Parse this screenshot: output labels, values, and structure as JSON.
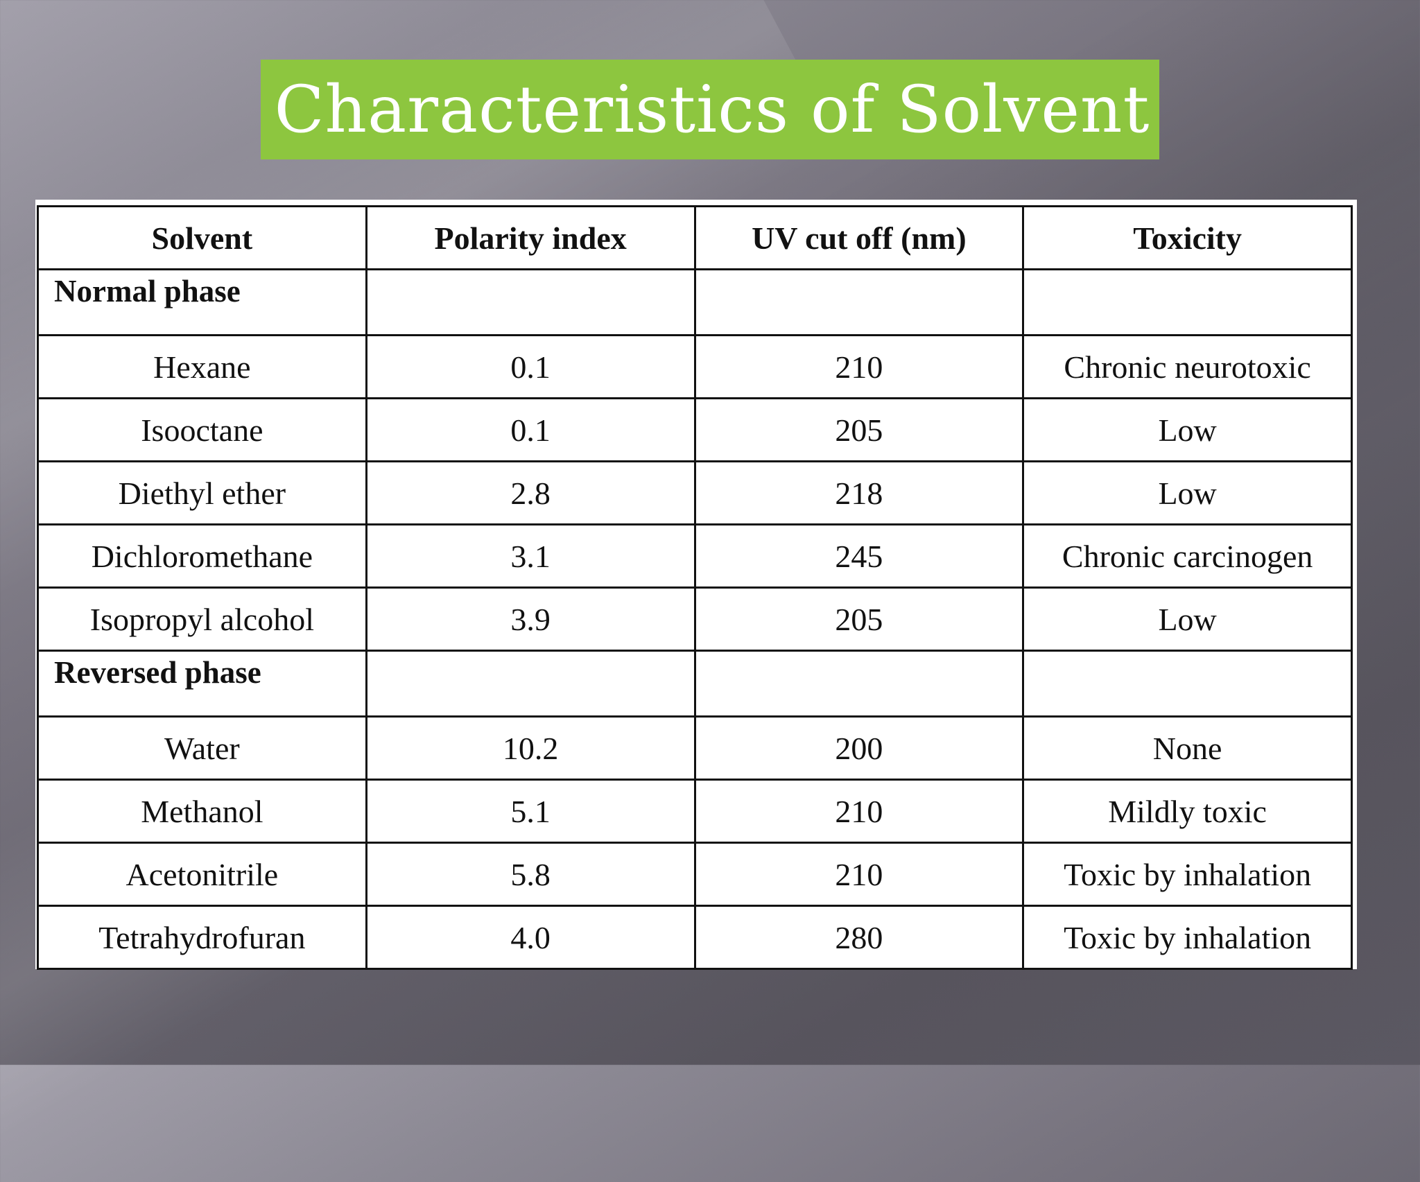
{
  "slide": {
    "title": "Characteristics of Solvent",
    "title_bg_color": "#8dc63f"
  },
  "table": {
    "headers": [
      "Solvent",
      "Polarity index",
      "UV cut off (nm)",
      "Toxicity"
    ],
    "normal_phase_label": "Normal phase",
    "normal_phase_rows": [
      {
        "solvent": "Hexane",
        "polarity_index": "0.1",
        "uv_cutoff": "210",
        "toxicity": "Chronic neurotoxic"
      },
      {
        "solvent": "Isooctane",
        "polarity_index": "0.1",
        "uv_cutoff": "205",
        "toxicity": "Low"
      },
      {
        "solvent": "Diethyl ether",
        "polarity_index": "2.8",
        "uv_cutoff": "218",
        "toxicity": "Low"
      },
      {
        "solvent": "Dichloromethane",
        "polarity_index": "3.1",
        "uv_cutoff": "245",
        "toxicity": "Chronic carcinogen"
      },
      {
        "solvent": "Isopropyl alcohol",
        "polarity_index": "3.9",
        "uv_cutoff": "205",
        "toxicity": "Low"
      }
    ],
    "reversed_phase_label": "Reversed phase",
    "reversed_phase_rows": [
      {
        "solvent": "Water",
        "polarity_index": "10.2",
        "uv_cutoff": "200",
        "toxicity": "None"
      },
      {
        "solvent": "Methanol",
        "polarity_index": "5.1",
        "uv_cutoff": "210",
        "toxicity": "Mildly toxic"
      },
      {
        "solvent": "Acetonitrile",
        "polarity_index": "5.8",
        "uv_cutoff": "210",
        "toxicity": "Toxic by inhalation"
      },
      {
        "solvent": "Tetrahydrofuran",
        "polarity_index": "4.0",
        "uv_cutoff": "280",
        "toxicity": "Toxic by inhalation"
      }
    ]
  }
}
